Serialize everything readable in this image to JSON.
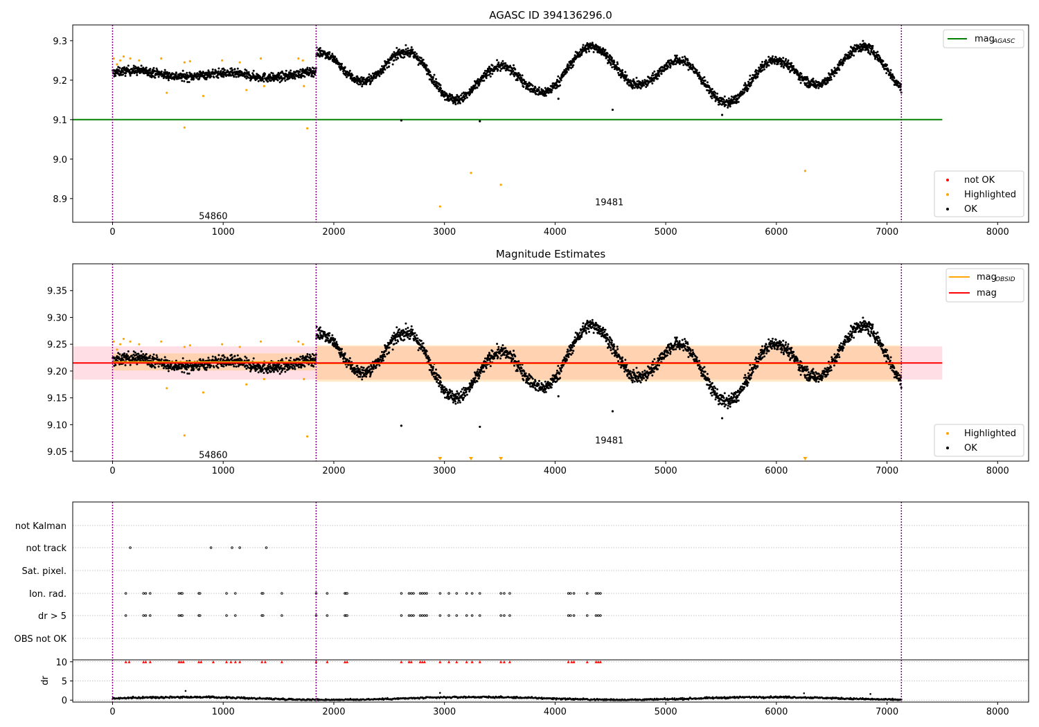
{
  "colors": {
    "ok": "#000000",
    "highlighted": "#ffa500",
    "not_ok": "#ff0000",
    "mag_agasc": "#008000",
    "mag_obsid": "#ffa500",
    "mag": "#ff0000",
    "obs_line": "#800080"
  },
  "chart_data": [
    {
      "type": "scatter",
      "title": "AGASC ID 394136296.0",
      "xlim": [
        -360,
        8280
      ],
      "ylim": [
        8.84,
        9.34
      ],
      "x_ticks": [
        0,
        1000,
        2000,
        3000,
        4000,
        5000,
        6000,
        7000,
        8000
      ],
      "x_tick_labels": [
        "0",
        "1000",
        "2000",
        "3000",
        "4000",
        "5000",
        "6000",
        "7000",
        "8000"
      ],
      "y_ticks": [
        8.9,
        9.0,
        9.1,
        9.2,
        9.3
      ],
      "y_tick_labels": [
        "8.9",
        "9.0",
        "9.1",
        "9.2",
        "9.3"
      ],
      "obs_boundaries": [
        0,
        1840,
        7130
      ],
      "obs_labels": [
        {
          "text": "54860",
          "x": 910,
          "y": 8.855
        },
        {
          "text": "19481",
          "x": 4490,
          "y": 8.89
        }
      ],
      "mag_agasc": {
        "value": 9.1,
        "x_start": -360,
        "x_end": 7500
      },
      "highlighted_points": [
        {
          "x": 10,
          "y": 9.255
        },
        {
          "x": 40,
          "y": 9.24
        },
        {
          "x": 70,
          "y": 9.25
        },
        {
          "x": 100,
          "y": 9.26
        },
        {
          "x": 160,
          "y": 9.255
        },
        {
          "x": 240,
          "y": 9.25
        },
        {
          "x": 440,
          "y": 9.255
        },
        {
          "x": 490,
          "y": 9.168
        },
        {
          "x": 650,
          "y": 9.245
        },
        {
          "x": 700,
          "y": 9.248
        },
        {
          "x": 650,
          "y": 9.08
        },
        {
          "x": 820,
          "y": 9.16
        },
        {
          "x": 990,
          "y": 9.25
        },
        {
          "x": 1150,
          "y": 9.245
        },
        {
          "x": 1210,
          "y": 9.175
        },
        {
          "x": 1340,
          "y": 9.255
        },
        {
          "x": 1370,
          "y": 9.185
        },
        {
          "x": 1680,
          "y": 9.255
        },
        {
          "x": 1730,
          "y": 9.185
        },
        {
          "x": 1760,
          "y": 9.078
        },
        {
          "x": 1720,
          "y": 9.25
        },
        {
          "x": 2960,
          "y": 8.88
        },
        {
          "x": 3240,
          "y": 8.965
        },
        {
          "x": 3510,
          "y": 8.935
        },
        {
          "x": 6260,
          "y": 8.97
        }
      ],
      "outlier_points": [
        {
          "x": 2610,
          "y": 9.098
        },
        {
          "x": 3320,
          "y": 9.096
        },
        {
          "x": 4030,
          "y": 9.153
        },
        {
          "x": 4520,
          "y": 9.125
        },
        {
          "x": 5510,
          "y": 9.112
        }
      ],
      "segments": [
        {
          "x0": 0,
          "x1": 1840,
          "center": 9.215,
          "amp": 0.006,
          "spread": 0.011
        },
        {
          "x0": 1840,
          "x1": 7130,
          "center": 9.215,
          "amp": 0.045,
          "spread": 0.012
        }
      ],
      "legend_top": [
        {
          "label": "mag",
          "sub": "AGASC",
          "color": "#008000"
        }
      ],
      "legend_bottom": [
        {
          "label": "not OK",
          "color": "#ff0000"
        },
        {
          "label": "Highlighted",
          "color": "#ffa500"
        },
        {
          "label": "OK",
          "color": "#000000"
        }
      ]
    },
    {
      "type": "scatter",
      "title": "Magnitude Estimates",
      "xlim": [
        -360,
        8280
      ],
      "ylim": [
        9.032,
        9.4
      ],
      "x_ticks": [
        0,
        1000,
        2000,
        3000,
        4000,
        5000,
        6000,
        7000,
        8000
      ],
      "x_tick_labels": [
        "0",
        "1000",
        "2000",
        "3000",
        "4000",
        "5000",
        "6000",
        "7000",
        "8000"
      ],
      "y_ticks": [
        9.05,
        9.1,
        9.15,
        9.2,
        9.25,
        9.3,
        9.35
      ],
      "y_tick_labels": [
        "9.05",
        "9.10",
        "9.15",
        "9.20",
        "9.25",
        "9.30",
        "9.35"
      ],
      "obs_boundaries": [
        0,
        1840,
        7130
      ],
      "obs_labels": [
        {
          "text": "54860",
          "x": 910,
          "y": 9.043
        },
        {
          "text": "19481",
          "x": 4490,
          "y": 9.07
        }
      ],
      "mag": {
        "value": 9.215,
        "x_start": -360,
        "x_end": 7500,
        "band": [
          9.184,
          9.246
        ]
      },
      "mag_obsid": [
        {
          "x0": 0,
          "x1": 1840,
          "value": 9.217,
          "band": [
            9.201,
            9.233
          ]
        },
        {
          "x0": 1840,
          "x1": 7130,
          "value": 9.214,
          "band": [
            9.18,
            9.248
          ]
        }
      ],
      "highlighted_points": [
        {
          "x": 10,
          "y": 9.255
        },
        {
          "x": 40,
          "y": 9.24
        },
        {
          "x": 70,
          "y": 9.25
        },
        {
          "x": 100,
          "y": 9.26
        },
        {
          "x": 160,
          "y": 9.255
        },
        {
          "x": 240,
          "y": 9.25
        },
        {
          "x": 440,
          "y": 9.255
        },
        {
          "x": 490,
          "y": 9.168
        },
        {
          "x": 650,
          "y": 9.245
        },
        {
          "x": 700,
          "y": 9.248
        },
        {
          "x": 650,
          "y": 9.08
        },
        {
          "x": 820,
          "y": 9.16
        },
        {
          "x": 990,
          "y": 9.25
        },
        {
          "x": 1150,
          "y": 9.245
        },
        {
          "x": 1210,
          "y": 9.175
        },
        {
          "x": 1340,
          "y": 9.255
        },
        {
          "x": 1370,
          "y": 9.185
        },
        {
          "x": 1680,
          "y": 9.255
        },
        {
          "x": 1730,
          "y": 9.185
        },
        {
          "x": 1760,
          "y": 9.078
        },
        {
          "x": 1720,
          "y": 9.25
        }
      ],
      "clipped_markers": [
        {
          "x": 2960
        },
        {
          "x": 3240
        },
        {
          "x": 3510
        },
        {
          "x": 6260
        }
      ],
      "outlier_points": [
        {
          "x": 2610,
          "y": 9.098
        },
        {
          "x": 3320,
          "y": 9.096
        },
        {
          "x": 4030,
          "y": 9.153
        },
        {
          "x": 4520,
          "y": 9.125
        },
        {
          "x": 5510,
          "y": 9.112
        }
      ],
      "legend_top": [
        {
          "label": "mag",
          "sub": "OBSID",
          "color": "#ffa500"
        },
        {
          "label": "mag",
          "sub": "",
          "color": "#ff0000"
        }
      ],
      "legend_bottom": [
        {
          "label": "Highlighted",
          "color": "#ffa500"
        },
        {
          "label": "OK",
          "color": "#000000"
        }
      ]
    },
    {
      "type": "scatter",
      "title": "",
      "xlim": [
        -360,
        8280
      ],
      "x_ticks": [
        0,
        1000,
        2000,
        3000,
        4000,
        5000,
        6000,
        7000,
        8000
      ],
      "x_tick_labels": [
        "0",
        "1000",
        "2000",
        "3000",
        "4000",
        "5000",
        "6000",
        "7000",
        "8000"
      ],
      "obs_boundaries": [
        0,
        1840,
        7130
      ],
      "flag_categories": [
        "not Kalman",
        "not track",
        "Sat. pixel.",
        "Ion. rad.",
        "dr > 5",
        "OBS not OK"
      ],
      "flags": {
        "not Kalman": [],
        "not track": [
          160,
          890,
          1080,
          1150,
          1390
        ],
        "Sat. pixel.": [],
        "Ion. rad.": [
          120,
          280,
          300,
          340,
          600,
          620,
          630,
          780,
          790,
          1030,
          1110,
          1350,
          1360,
          1530,
          1840,
          1940,
          2100,
          2110,
          2120,
          2610,
          2680,
          2700,
          2720,
          2780,
          2800,
          2820,
          2840,
          2960,
          3040,
          3110,
          3200,
          3250,
          3320,
          3510,
          3540,
          3590,
          4120,
          4140,
          4170,
          4290,
          4370,
          4390,
          4410
        ],
        "dr > 5": [
          120,
          280,
          300,
          340,
          600,
          620,
          630,
          780,
          790,
          1030,
          1110,
          1350,
          1360,
          1530,
          1840,
          1940,
          2100,
          2110,
          2120,
          2610,
          2680,
          2700,
          2720,
          2780,
          2800,
          2820,
          2840,
          2960,
          3040,
          3110,
          3200,
          3250,
          3320,
          3510,
          3540,
          3590,
          4120,
          4140,
          4170,
          4290,
          4370,
          4390,
          4410
        ],
        "OBS not OK": []
      },
      "dr": {
        "ylabel": "dr",
        "ylim": [
          -0.5,
          10.5
        ],
        "y_ticks": [
          0,
          5,
          10
        ],
        "y_tick_labels": [
          "0",
          "5",
          "10"
        ],
        "clipped_x": [
          120,
          150,
          280,
          300,
          340,
          600,
          620,
          640,
          780,
          800,
          910,
          1030,
          1070,
          1110,
          1150,
          1350,
          1380,
          1530,
          1840,
          1940,
          2100,
          2120,
          2610,
          2680,
          2700,
          2780,
          2800,
          2820,
          2960,
          3040,
          3110,
          3200,
          3250,
          3320,
          3510,
          3540,
          3590,
          4120,
          4150,
          4170,
          4290,
          4370,
          4390,
          4410
        ],
        "outlier_points": [
          {
            "x": 660,
            "y": 2.4
          },
          {
            "x": 2960,
            "y": 1.9
          },
          {
            "x": 6250,
            "y": 1.8
          },
          {
            "x": 6850,
            "y": 1.6
          }
        ]
      }
    }
  ]
}
